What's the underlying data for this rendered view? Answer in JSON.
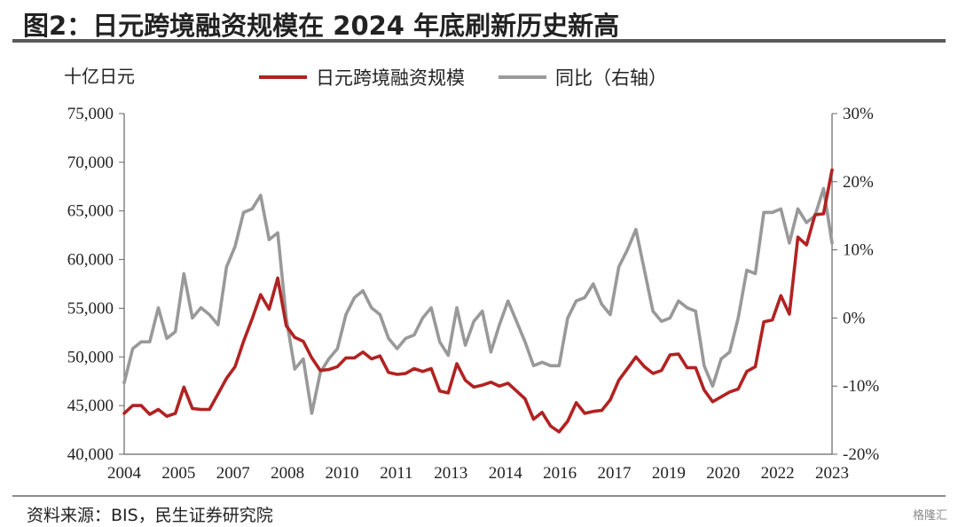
{
  "title": "图2：日元跨境融资规模在 2024 年底刷新历史新高",
  "source": "资料来源：BIS，民生证券研究院",
  "watermark": "格隆汇",
  "chart_data": {
    "type": "line",
    "left_axis_unit": "十亿日元",
    "left_ylim": [
      40000,
      75000
    ],
    "left_ticks": [
      "40,000",
      "45,000",
      "50,000",
      "55,000",
      "60,000",
      "65,000",
      "70,000",
      "75,000"
    ],
    "right_ylim": [
      -20,
      30
    ],
    "right_ticks": [
      "-20%",
      "-10%",
      "0%",
      "10%",
      "20%",
      "30%"
    ],
    "x_tick_labels": [
      "2004",
      "2005",
      "2007",
      "2008",
      "2010",
      "2011",
      "2013",
      "2014",
      "2016",
      "2017",
      "2019",
      "2020",
      "2022",
      "2023"
    ],
    "colors": {
      "volume": "#b22222",
      "yoy": "#999999"
    },
    "series": [
      {
        "name": "日元跨境融资规模",
        "axis": "left",
        "values": [
          44200,
          45000,
          45000,
          44100,
          44600,
          43900,
          44200,
          46900,
          44700,
          44600,
          44600,
          46200,
          47800,
          49000,
          51600,
          53900,
          56400,
          54900,
          58100,
          53200,
          52000,
          51600,
          49900,
          48600,
          48700,
          49000,
          49900,
          49900,
          50500,
          49800,
          50100,
          48400,
          48200,
          48300,
          48800,
          48500,
          48800,
          46500,
          46300,
          49300,
          47600,
          46900,
          47100,
          47400,
          47000,
          47300,
          46500,
          45700,
          43600,
          44300,
          42900,
          42300,
          43400,
          45300,
          44200,
          44400,
          44500,
          45600,
          47600,
          48800,
          50000,
          49000,
          48300,
          48600,
          50200,
          50300,
          48900,
          48900,
          46600,
          45400,
          45900,
          46400,
          46700,
          48500,
          49000,
          53600,
          53800,
          56300,
          54400,
          62300,
          61500,
          64600,
          64700,
          69200
        ]
      },
      {
        "name": "同比（右轴）",
        "axis": "right",
        "values": [
          -9.5,
          -4.5,
          -3.5,
          -3.5,
          1.5,
          -3,
          -2,
          6.5,
          0,
          1.5,
          0.5,
          -1,
          7.5,
          10.5,
          15.5,
          16,
          18,
          11.5,
          12.5,
          0,
          -7.5,
          -6,
          -14,
          -8,
          -6,
          -4.5,
          0.5,
          3,
          4,
          1.5,
          0.5,
          -3,
          -4.5,
          -3,
          -2.5,
          0,
          1.5,
          -3.5,
          -5.5,
          1.5,
          -4,
          -0.5,
          1,
          -5,
          -1,
          2.5,
          -0.5,
          -3.5,
          -7,
          -6.5,
          -7,
          -7,
          0,
          2.5,
          3,
          5,
          2,
          0.5,
          7.5,
          10,
          13,
          7,
          1,
          -0.5,
          0,
          2.5,
          1.5,
          1,
          -7,
          -10,
          -6,
          -5,
          0,
          7,
          6.5,
          15.5,
          15.5,
          16,
          11,
          16,
          14,
          15,
          19,
          11
        ]
      }
    ]
  }
}
